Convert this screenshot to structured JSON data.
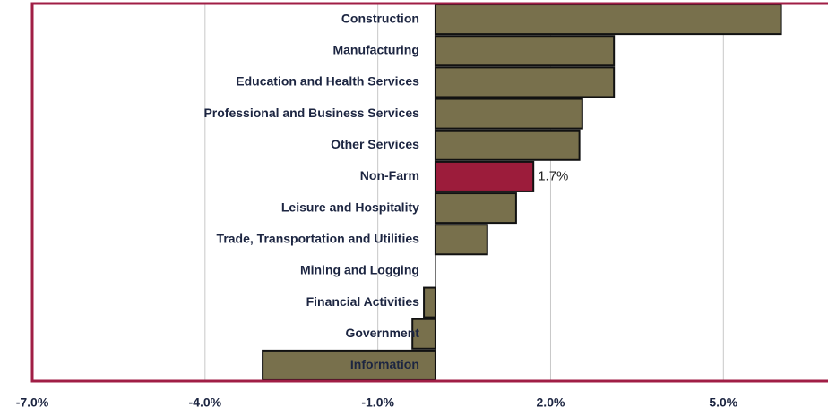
{
  "chart_data": {
    "type": "hbar",
    "categories": [
      "Construction",
      "Manufacturing",
      "Education and Health Services",
      "Professional and Business Services",
      "Other Services",
      "Non-Farm",
      "Leisure and Hospitality",
      "Trade, Transportation and Utilities",
      "Mining and Logging",
      "Financial Activities",
      "Government",
      "Information"
    ],
    "values": [
      6.0,
      3.1,
      3.1,
      2.55,
      2.5,
      1.7,
      1.4,
      0.9,
      0,
      -0.2,
      -0.4,
      -3.0
    ],
    "value_labels": [
      null,
      null,
      null,
      null,
      null,
      "1.7%",
      null,
      null,
      null,
      null,
      null,
      null
    ],
    "colors": [
      "#78704c",
      "#78704c",
      "#78704c",
      "#78704c",
      "#78704c",
      "#9c1c3b",
      "#78704c",
      "#78704c",
      "#78704c",
      "#78704c",
      "#78704c",
      "#78704c"
    ],
    "xlim": [
      -7,
      6.8
    ],
    "xticks": [
      {
        "value": -7,
        "label": "-7.0%"
      },
      {
        "value": -4,
        "label": "-4.0%"
      },
      {
        "value": -1,
        "label": "-1.0%"
      },
      {
        "value": 2,
        "label": "2.0%"
      },
      {
        "value": 5,
        "label": "5.0%"
      }
    ],
    "grid": true
  }
}
